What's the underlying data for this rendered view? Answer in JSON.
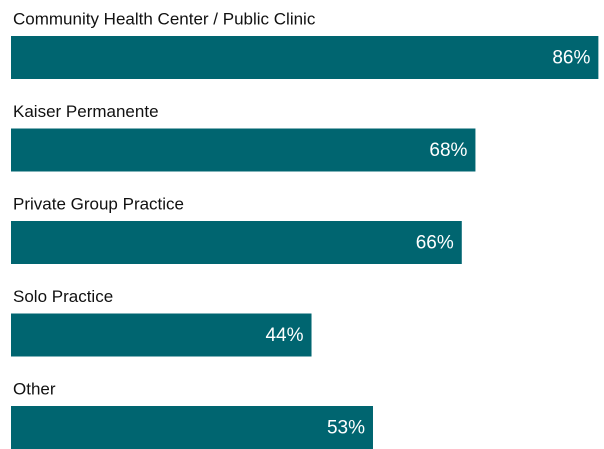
{
  "chart_data": {
    "type": "bar",
    "orientation": "horizontal",
    "categories": [
      "Community Health Center / Public Clinic",
      "Kaiser Permanente",
      "Private Group Practice",
      "Solo Practice",
      "Other"
    ],
    "values": [
      86,
      68,
      66,
      44,
      53
    ],
    "value_labels": [
      "86%",
      "68%",
      "66%",
      "44%",
      "53%"
    ],
    "color": "#006570"
  }
}
